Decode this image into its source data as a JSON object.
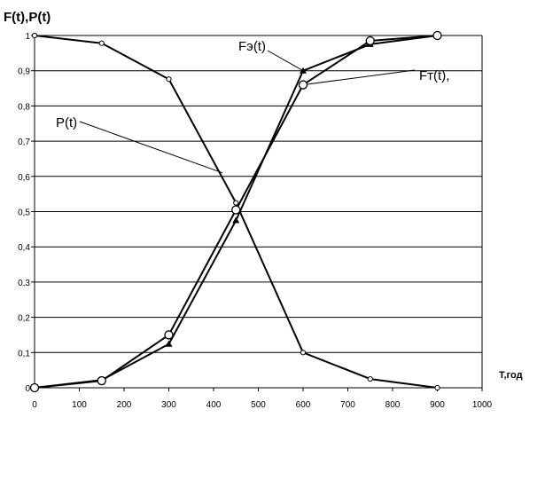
{
  "chart_data": {
    "type": "line",
    "ylabel": "F(t),P(t)",
    "xlabel": "T,год",
    "xlim": [
      0,
      1000
    ],
    "ylim": [
      0,
      1
    ],
    "xticks": [
      0,
      100,
      200,
      300,
      400,
      500,
      600,
      700,
      800,
      900,
      1000
    ],
    "xtick_labels": [
      "0",
      "100",
      "200",
      "300",
      "400",
      "500",
      "600",
      "700",
      "800",
      "900",
      "1000"
    ],
    "yticks": [
      0,
      0.1,
      0.2,
      0.3,
      0.4,
      0.5,
      0.6,
      0.7,
      0.8,
      0.9,
      1
    ],
    "ytick_labels": [
      "0",
      "0,1",
      "0,2",
      "0,3",
      "0,4",
      "0,5",
      "0,6",
      "0,7",
      "0,8",
      "0,9",
      "1"
    ],
    "grid": "horizontal",
    "legend": "none",
    "series": [
      {
        "name": "P(t)",
        "marker": "small-circle",
        "x": [
          0,
          150,
          300,
          450,
          600,
          750,
          900
        ],
        "y": [
          1.0,
          0.978,
          0.876,
          0.525,
          0.1,
          0.025,
          0.0
        ]
      },
      {
        "name": "Fэ(t)",
        "marker": "triangle",
        "x": [
          0,
          150,
          300,
          450,
          600,
          750,
          900
        ],
        "y": [
          0.0,
          0.022,
          0.124,
          0.475,
          0.9,
          0.975,
          1.0
        ]
      },
      {
        "name": "Fт(t),",
        "marker": "large-circle",
        "x": [
          0,
          150,
          300,
          450,
          600,
          750,
          900
        ],
        "y": [
          0.0,
          0.02,
          0.15,
          0.505,
          0.86,
          0.985,
          1.0
        ]
      }
    ],
    "annotations": [
      {
        "text": "Fэ(t)",
        "points_to": [
          600,
          0.9
        ]
      },
      {
        "text": "Fт(t),",
        "points_to": [
          600,
          0.86
        ]
      },
      {
        "text": "P(t)",
        "points_to": [
          420,
          0.61
        ]
      }
    ]
  }
}
